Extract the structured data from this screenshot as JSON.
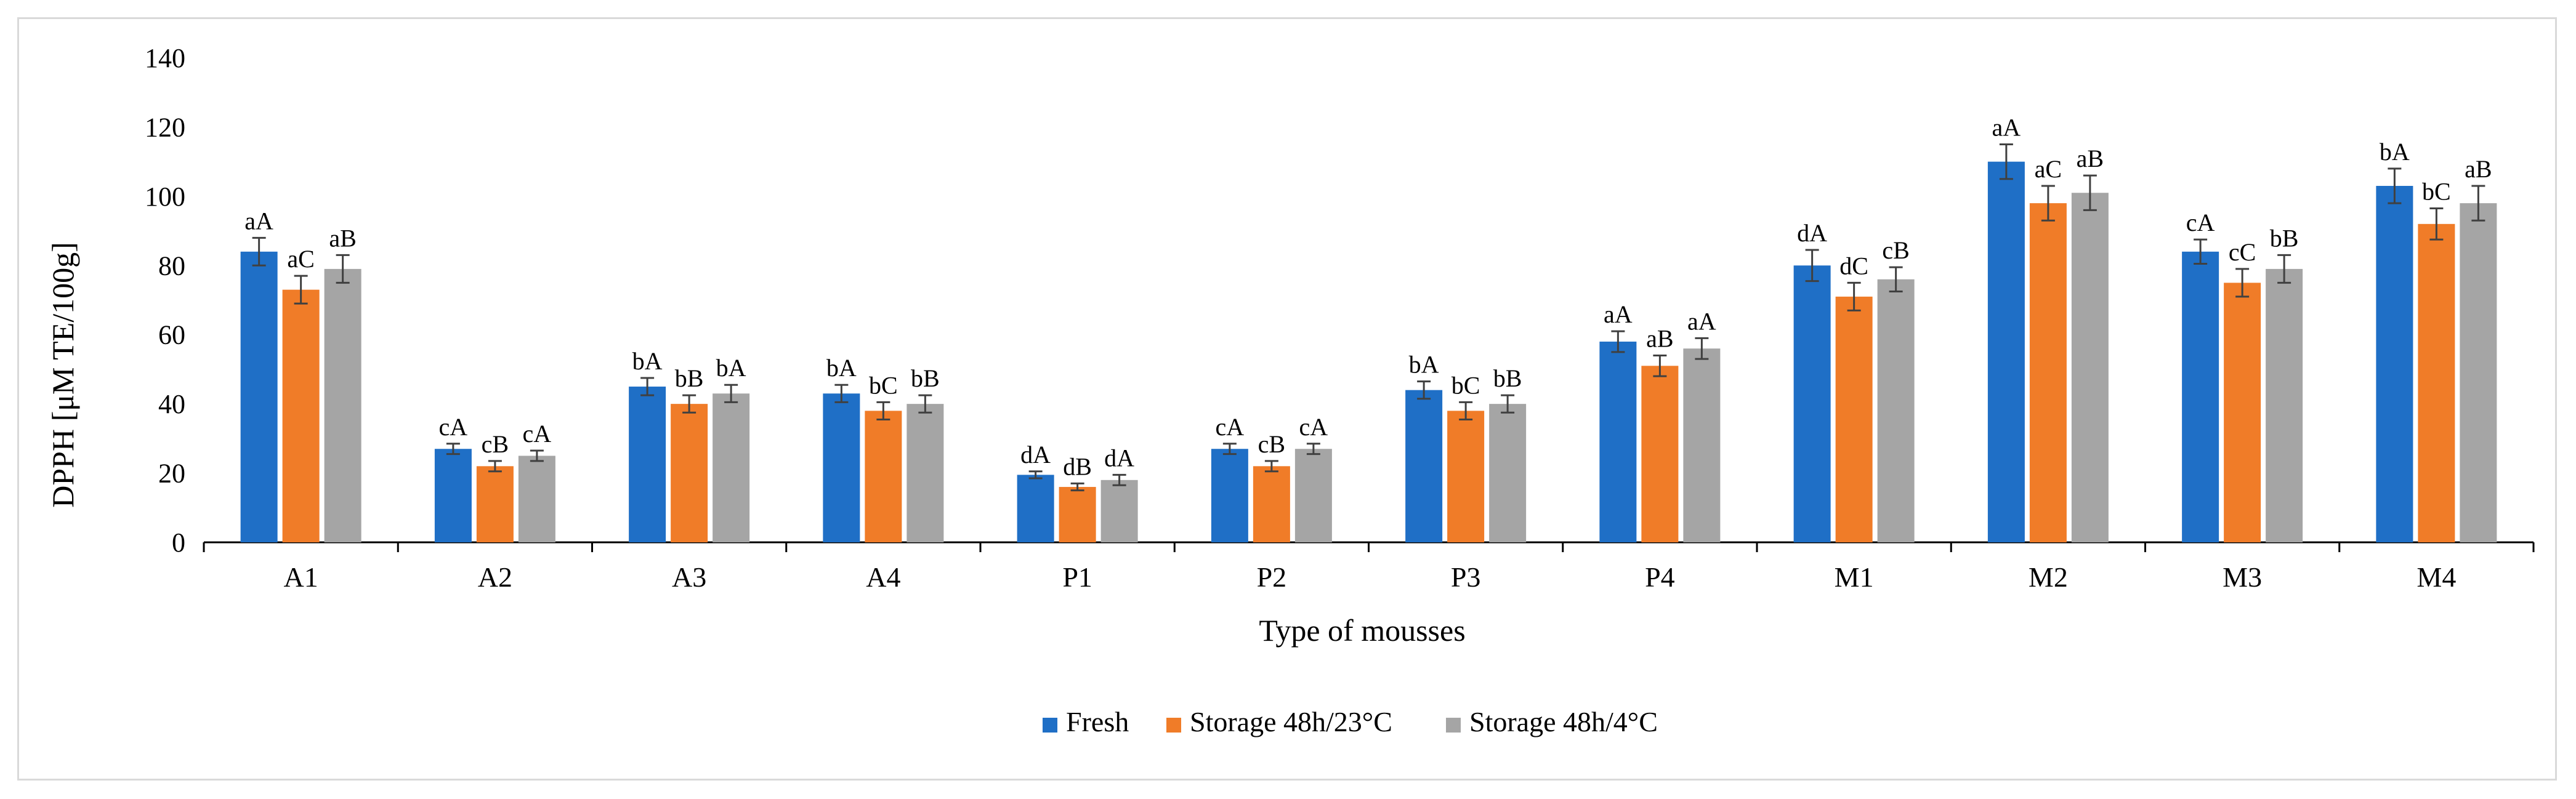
{
  "chart_data": {
    "type": "bar",
    "title": "",
    "xlabel": "Type of mousses",
    "ylabel": "DPPH [μM TE/100g]",
    "ylim": [
      0,
      140
    ],
    "yticks": [
      0,
      20,
      40,
      60,
      80,
      100,
      120,
      140
    ],
    "ytick_labels": [
      "0",
      "20",
      "40",
      "60",
      "80",
      "100",
      "120",
      "140"
    ],
    "grid": false,
    "legend_position": "bottom",
    "categories": [
      "A1",
      "A2",
      "A3",
      "A4",
      "P1",
      "P2",
      "P3",
      "P4",
      "M1",
      "M2",
      "M3",
      "M4"
    ],
    "series": [
      {
        "name": "Fresh",
        "color": "#1f6fc6",
        "values": [
          84,
          27,
          45,
          43,
          19.5,
          27,
          44,
          58,
          80,
          110,
          84,
          103
        ],
        "errors": [
          4,
          1.5,
          2.5,
          2.5,
          1,
          1.5,
          2.5,
          3,
          4.5,
          5,
          3.5,
          5
        ],
        "labels": [
          "aA",
          "cA",
          "bA",
          "bA",
          "dA",
          "cA",
          "bA",
          "aA",
          "dA",
          "aA",
          "cA",
          "bA"
        ]
      },
      {
        "name": "Storage 48h/23°C",
        "color": "#f07c28",
        "values": [
          73,
          22,
          40,
          38,
          16,
          22,
          38,
          51,
          71,
          98,
          75,
          92
        ],
        "errors": [
          4,
          1.5,
          2.5,
          2.5,
          1,
          1.5,
          2.5,
          3,
          4,
          5,
          4,
          4.5
        ],
        "labels": [
          "aC",
          "cB",
          "bB",
          "bC",
          "dB",
          "cB",
          "bC",
          "aB",
          "dC",
          "aC",
          "cC",
          "bC"
        ]
      },
      {
        "name": "Storage 48h/4°C",
        "color": "#a5a5a5",
        "values": [
          79,
          25,
          43,
          40,
          18,
          27,
          40,
          56,
          76,
          101,
          79,
          98
        ],
        "errors": [
          4,
          1.5,
          2.5,
          2.5,
          1.5,
          1.5,
          2.5,
          3,
          3.5,
          5,
          4,
          5
        ],
        "labels": [
          "aB",
          "cA",
          "bA",
          "bB",
          "dA",
          "cA",
          "bB",
          "aA",
          "cB",
          "aB",
          "bB",
          "aB"
        ]
      }
    ]
  }
}
